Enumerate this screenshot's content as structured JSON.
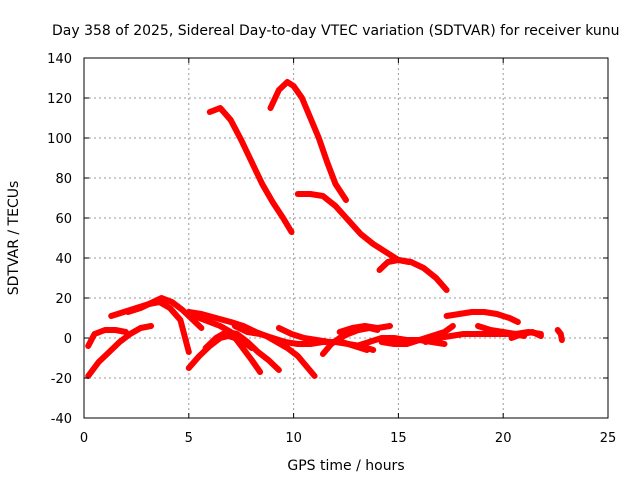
{
  "chart_data": {
    "type": "scatter",
    "title": "Day 358 of 2025, Sidereal Day-to-day VTEC variation (SDTVAR) for receiver kunu",
    "xlabel": "GPS time / hours",
    "ylabel": "SDTVAR / TECUs",
    "xlim": [
      0,
      25
    ],
    "ylim": [
      -40,
      140
    ],
    "xticks": [
      0,
      5,
      10,
      15,
      20,
      25
    ],
    "yticks": [
      -40,
      -20,
      0,
      20,
      40,
      60,
      80,
      100,
      120,
      140
    ],
    "grid": true,
    "color": "#ff0000",
    "series": [
      {
        "name": "s1",
        "x": [
          6.0,
          6.5,
          7.0,
          7.5,
          8.0,
          8.5,
          9.0,
          9.5,
          9.9
        ],
        "y": [
          113,
          115,
          109,
          99,
          88,
          77,
          68,
          60,
          53
        ]
      },
      {
        "name": "s2",
        "x": [
          8.9,
          9.3,
          9.7,
          10.0,
          10.4,
          10.8,
          11.2,
          11.6,
          12.0,
          12.5
        ],
        "y": [
          115,
          124,
          128,
          126,
          120,
          110,
          100,
          88,
          77,
          69
        ]
      },
      {
        "name": "s3",
        "x": [
          10.2,
          10.8,
          11.4,
          12.0,
          12.6,
          13.2,
          13.8,
          14.4,
          15.0,
          15.6,
          16.2,
          16.8,
          17.3
        ],
        "y": [
          72,
          72,
          71,
          66,
          59,
          52,
          47,
          43,
          39,
          38,
          35,
          30,
          24
        ]
      },
      {
        "name": "s4",
        "x": [
          14.1,
          14.5,
          15.0,
          15.5
        ],
        "y": [
          34,
          38,
          39,
          38
        ]
      },
      {
        "name": "s5",
        "x": [
          0.2,
          0.7,
          1.2,
          1.7,
          2.2,
          2.7,
          3.2
        ],
        "y": [
          -19,
          -12,
          -7,
          -2,
          2,
          5,
          6
        ]
      },
      {
        "name": "s6",
        "x": [
          0.2,
          0.5,
          1.0,
          1.5,
          2.0
        ],
        "y": [
          -4,
          2,
          4,
          4,
          3
        ]
      },
      {
        "name": "s7",
        "x": [
          1.3,
          1.9,
          2.5,
          3.1,
          3.6,
          4.1,
          4.6,
          5.0
        ],
        "y": [
          11,
          13,
          15,
          17,
          18,
          15,
          9,
          -7
        ]
      },
      {
        "name": "s8",
        "x": [
          2.1,
          2.7,
          3.3,
          3.7,
          4.2,
          4.7,
          5.2,
          5.6
        ],
        "y": [
          13,
          15,
          18,
          20,
          18,
          14,
          9,
          5
        ]
      },
      {
        "name": "s9",
        "x": [
          5.0,
          5.5,
          6.0,
          6.5,
          7.0,
          7.5,
          8.0,
          8.4
        ],
        "y": [
          13,
          10,
          8,
          6,
          3,
          -4,
          -11,
          -17
        ]
      },
      {
        "name": "s10",
        "x": [
          5.0,
          5.5,
          6.0,
          6.5,
          6.9,
          7.5,
          8.0
        ],
        "y": [
          -15,
          -9,
          -4,
          0,
          1,
          -1,
          -5
        ]
      },
      {
        "name": "s11",
        "x": [
          5.8,
          6.3,
          6.8,
          7.3,
          7.8,
          8.3,
          8.8,
          9.3
        ],
        "y": [
          -5,
          0,
          3,
          2,
          -2,
          -7,
          -11,
          -16
        ]
      },
      {
        "name": "s12",
        "x": [
          5.0,
          5.6,
          6.3,
          7.0,
          7.6,
          8.2,
          8.7,
          9.2,
          9.7,
          10.2,
          10.6,
          11.0
        ],
        "y": [
          13,
          12,
          10,
          8,
          6,
          3,
          1,
          -2,
          -5,
          -9,
          -14,
          -19
        ]
      },
      {
        "name": "s13",
        "x": [
          7.2,
          7.8,
          8.4,
          9.0,
          9.6,
          10.2,
          10.8,
          11.4,
          12.0,
          12.6,
          13.2,
          13.8
        ],
        "y": [
          6,
          3,
          2,
          0,
          -2,
          -3,
          -3,
          -2,
          -2,
          -3,
          -4,
          -6
        ]
      },
      {
        "name": "s14",
        "x": [
          9.3,
          9.9,
          10.5,
          11.1,
          11.7,
          12.3,
          12.9,
          13.5
        ],
        "y": [
          5,
          2,
          0,
          -1,
          -2,
          -2,
          -4,
          -6
        ]
      },
      {
        "name": "s15",
        "x": [
          11.4,
          11.8,
          12.2,
          12.6,
          13.1,
          13.6,
          14.0
        ],
        "y": [
          -8,
          -3,
          0,
          2,
          4,
          5,
          4
        ]
      },
      {
        "name": "s16",
        "x": [
          12.2,
          12.8,
          13.4,
          14.0,
          14.6
        ],
        "y": [
          3,
          5,
          6,
          5,
          6
        ]
      },
      {
        "name": "s17",
        "x": [
          13.0,
          13.6,
          14.2,
          14.8,
          15.4,
          16.0,
          16.6,
          17.2
        ],
        "y": [
          -4,
          -2,
          0,
          0,
          -1,
          -1,
          -2,
          -3
        ]
      },
      {
        "name": "s18",
        "x": [
          14.2,
          14.8,
          15.4,
          16.0,
          16.6,
          17.2,
          17.6
        ],
        "y": [
          -2,
          -3,
          -3,
          -1,
          1,
          3,
          6
        ]
      },
      {
        "name": "s19",
        "x": [
          16.3,
          16.9,
          17.5,
          18.1,
          18.7,
          19.3,
          19.9,
          20.5,
          21.0
        ],
        "y": [
          -2,
          0,
          1,
          2,
          2,
          2,
          2,
          2,
          1
        ]
      },
      {
        "name": "s20",
        "x": [
          17.3,
          17.9,
          18.5,
          19.1,
          19.7,
          20.3,
          20.7
        ],
        "y": [
          11,
          12,
          13,
          13,
          12,
          10,
          8
        ]
      },
      {
        "name": "s21",
        "x": [
          18.8,
          19.4,
          20.0,
          20.6,
          21.2,
          21.8
        ],
        "y": [
          6,
          4,
          3,
          2,
          3,
          2
        ]
      },
      {
        "name": "s22",
        "x": [
          20.4,
          20.9,
          21.4,
          21.8
        ],
        "y": [
          0,
          2,
          3,
          1
        ]
      },
      {
        "name": "s23",
        "x": [
          22.6,
          22.75,
          22.8
        ],
        "y": [
          4,
          2,
          -1
        ]
      }
    ]
  }
}
